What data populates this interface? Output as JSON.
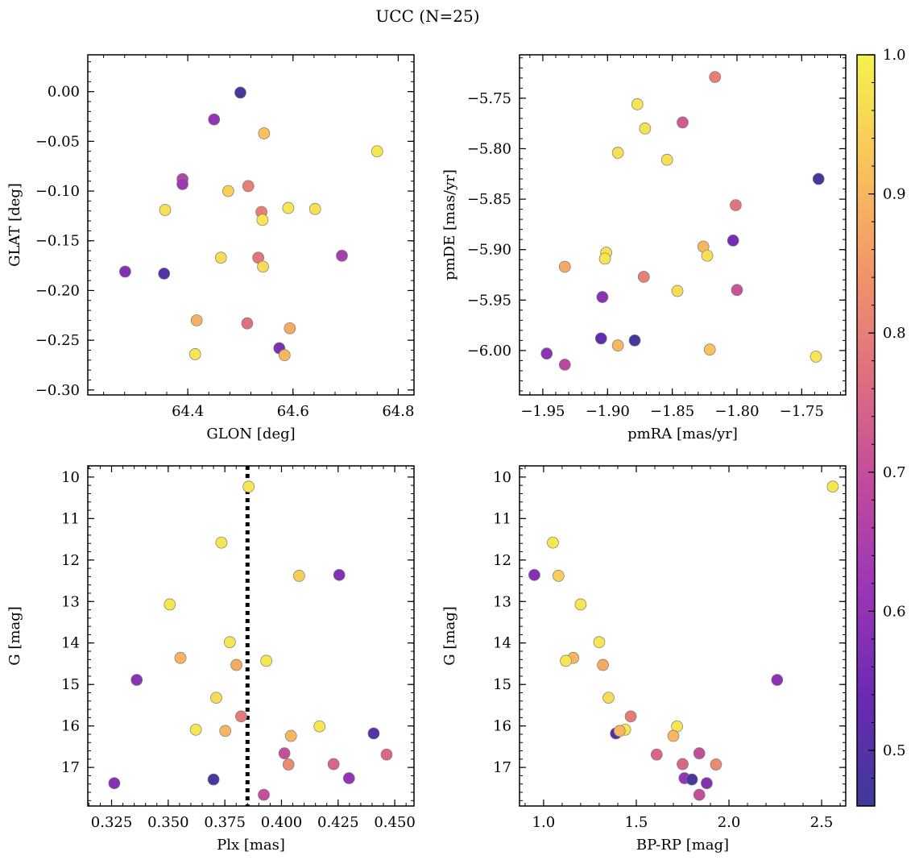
{
  "figure": {
    "title": "UCC (N=25)"
  },
  "colorbar": {
    "range": [
      0.46,
      1.0
    ],
    "ticks": [
      0.5,
      0.6,
      0.7,
      0.8,
      0.9,
      1.0
    ],
    "tick_labels": [
      "0.5",
      "0.6",
      "0.7",
      "0.8",
      "0.9",
      "1.0"
    ],
    "colormap": "plasma",
    "colormap_stops": [
      "#3f3a99",
      "#6a2ab2",
      "#9a36b6",
      "#c24a9e",
      "#df6f7f",
      "#f2966a",
      "#f9c45b",
      "#f5f24e"
    ]
  },
  "chart_data": [
    {
      "type": "scatter",
      "xlabel": "GLON [deg]",
      "ylabel": "GLAT [deg]",
      "xlim": [
        64.21,
        64.83
      ],
      "ylim": [
        -0.305,
        0.037
      ],
      "y_inverted": false,
      "xticks": [
        64.4,
        64.6,
        64.8
      ],
      "xtick_labels": [
        "64.4",
        "64.6",
        "64.8"
      ],
      "yticks": [
        0.0,
        -0.05,
        -0.1,
        -0.15,
        -0.2,
        -0.25,
        -0.3
      ],
      "ytick_labels": [
        "0.00",
        "−0.05",
        "−0.10",
        "−0.15",
        "−0.20",
        "−0.25",
        "−0.30"
      ],
      "grid": false,
      "x": [
        64.5,
        64.45,
        64.545,
        64.76,
        64.39,
        64.39,
        64.477,
        64.515,
        64.357,
        64.591,
        64.642,
        64.54,
        64.542,
        64.281,
        64.355,
        64.463,
        64.534,
        64.543,
        64.693,
        64.417,
        64.513,
        64.594,
        64.574,
        64.414,
        64.584
      ],
      "y": [
        -0.001,
        -0.028,
        -0.042,
        -0.06,
        -0.088,
        -0.093,
        -0.1,
        -0.095,
        -0.119,
        -0.117,
        -0.118,
        -0.121,
        -0.129,
        -0.181,
        -0.183,
        -0.167,
        -0.167,
        -0.176,
        -0.165,
        -0.23,
        -0.233,
        -0.238,
        -0.258,
        -0.264,
        -0.265
      ],
      "c": [
        0.47,
        0.6,
        0.92,
        0.98,
        0.67,
        0.62,
        0.94,
        0.8,
        0.97,
        0.98,
        0.97,
        0.8,
        0.98,
        0.58,
        0.5,
        0.96,
        0.78,
        0.96,
        0.64,
        0.89,
        0.77,
        0.88,
        0.57,
        0.98,
        0.9
      ]
    },
    {
      "type": "scatter",
      "xlabel": "pmRA [mas/yr]",
      "ylabel": "pmDE [mas/yr]",
      "xlim": [
        -1.968,
        -1.716
      ],
      "ylim": [
        -6.044,
        -5.707
      ],
      "y_inverted": false,
      "xticks": [
        -1.95,
        -1.9,
        -1.85,
        -1.8,
        -1.75
      ],
      "xtick_labels": [
        "−1.95",
        "−1.90",
        "−1.85",
        "−1.80",
        "−1.75"
      ],
      "yticks": [
        -5.75,
        -5.8,
        -5.85,
        -5.9,
        -5.95,
        -6.0
      ],
      "ytick_labels": [
        "−5.75",
        "−5.80",
        "−5.85",
        "−5.90",
        "−5.95",
        "−6.00"
      ],
      "grid": false,
      "x": [
        -1.817,
        -1.877,
        -1.871,
        -1.842,
        -1.892,
        -1.854,
        -1.737,
        -1.801,
        -1.826,
        -1.803,
        -1.823,
        -1.901,
        -1.902,
        -1.933,
        -1.872,
        -1.8,
        -1.846,
        -1.904,
        -1.905,
        -1.879,
        -1.892,
        -1.821,
        -1.947,
        -1.933,
        -1.739
      ],
      "y": [
        -5.729,
        -5.756,
        -5.78,
        -5.774,
        -5.804,
        -5.811,
        -5.83,
        -5.856,
        -5.897,
        -5.891,
        -5.906,
        -5.903,
        -5.909,
        -5.917,
        -5.927,
        -5.94,
        -5.941,
        -5.947,
        -5.988,
        -5.99,
        -5.995,
        -5.999,
        -6.003,
        -6.014,
        -6.006
      ],
      "c": [
        0.8,
        0.98,
        0.97,
        0.73,
        0.97,
        0.97,
        0.47,
        0.78,
        0.9,
        0.56,
        0.97,
        0.97,
        0.98,
        0.88,
        0.8,
        0.71,
        0.96,
        0.59,
        0.52,
        0.47,
        0.9,
        0.92,
        0.59,
        0.68,
        0.98
      ]
    },
    {
      "type": "scatter",
      "xlabel": "Plx [mas]",
      "ylabel": "G [mag]",
      "xlim": [
        0.3145,
        0.4585
      ],
      "ylim": [
        9.73,
        17.93
      ],
      "y_inverted": true,
      "xticks": [
        0.325,
        0.35,
        0.375,
        0.4,
        0.425,
        0.45
      ],
      "xtick_labels": [
        "0.325",
        "0.350",
        "0.375",
        "0.400",
        "0.425",
        "0.450"
      ],
      "yticks": [
        10,
        11,
        12,
        13,
        14,
        15,
        16,
        17
      ],
      "ytick_labels": [
        "10",
        "11",
        "12",
        "13",
        "14",
        "15",
        "16",
        "17"
      ],
      "grid": false,
      "vline": 0.385,
      "x": [
        0.3855,
        0.3735,
        0.4078,
        0.4255,
        0.3507,
        0.3772,
        0.3554,
        0.3801,
        0.3933,
        0.3361,
        0.3712,
        0.3822,
        0.3622,
        0.4168,
        0.3752,
        0.4042,
        0.4407,
        0.4013,
        0.4464,
        0.4031,
        0.423,
        0.4298,
        0.37,
        0.3262,
        0.3922
      ],
      "y": [
        10.23,
        11.58,
        12.38,
        12.36,
        13.07,
        13.98,
        14.36,
        14.53,
        14.43,
        14.89,
        15.32,
        15.77,
        16.09,
        16.01,
        16.12,
        16.24,
        16.18,
        16.66,
        16.69,
        16.93,
        16.92,
        17.26,
        17.29,
        17.38,
        17.66
      ],
      "c": [
        0.98,
        0.98,
        0.94,
        0.58,
        0.98,
        0.98,
        0.9,
        0.88,
        0.98,
        0.59,
        0.96,
        0.79,
        0.98,
        0.98,
        0.9,
        0.9,
        0.5,
        0.7,
        0.75,
        0.82,
        0.75,
        0.6,
        0.48,
        0.58,
        0.7
      ]
    },
    {
      "type": "scatter",
      "xlabel": "BP-RP [mag]",
      "ylabel": "G [mag]",
      "xlim": [
        0.87,
        2.63
      ],
      "ylim": [
        9.73,
        17.93
      ],
      "y_inverted": true,
      "xticks": [
        1.0,
        1.5,
        2.0,
        2.5
      ],
      "xtick_labels": [
        "1.0",
        "1.5",
        "2.0",
        "2.5"
      ],
      "yticks": [
        10,
        11,
        12,
        13,
        14,
        15,
        16,
        17
      ],
      "ytick_labels": [
        "10",
        "11",
        "12",
        "13",
        "14",
        "15",
        "16",
        "17"
      ],
      "grid": false,
      "x": [
        2.56,
        1.05,
        1.08,
        0.95,
        1.2,
        1.3,
        1.16,
        1.12,
        1.32,
        2.26,
        1.35,
        1.47,
        1.72,
        1.44,
        1.39,
        1.41,
        1.7,
        1.61,
        1.84,
        1.75,
        1.93,
        1.76,
        1.8,
        1.88,
        1.84
      ],
      "y": [
        10.23,
        11.58,
        12.38,
        12.36,
        13.07,
        13.98,
        14.36,
        14.43,
        14.53,
        14.89,
        15.32,
        15.77,
        16.01,
        16.09,
        16.18,
        16.12,
        16.24,
        16.69,
        16.66,
        16.92,
        16.93,
        17.26,
        17.29,
        17.38,
        17.66
      ],
      "c": [
        0.98,
        0.98,
        0.94,
        0.58,
        0.98,
        0.98,
        0.9,
        0.98,
        0.88,
        0.59,
        0.96,
        0.79,
        0.98,
        0.98,
        0.5,
        0.9,
        0.9,
        0.75,
        0.7,
        0.75,
        0.82,
        0.6,
        0.48,
        0.58,
        0.7
      ]
    }
  ]
}
